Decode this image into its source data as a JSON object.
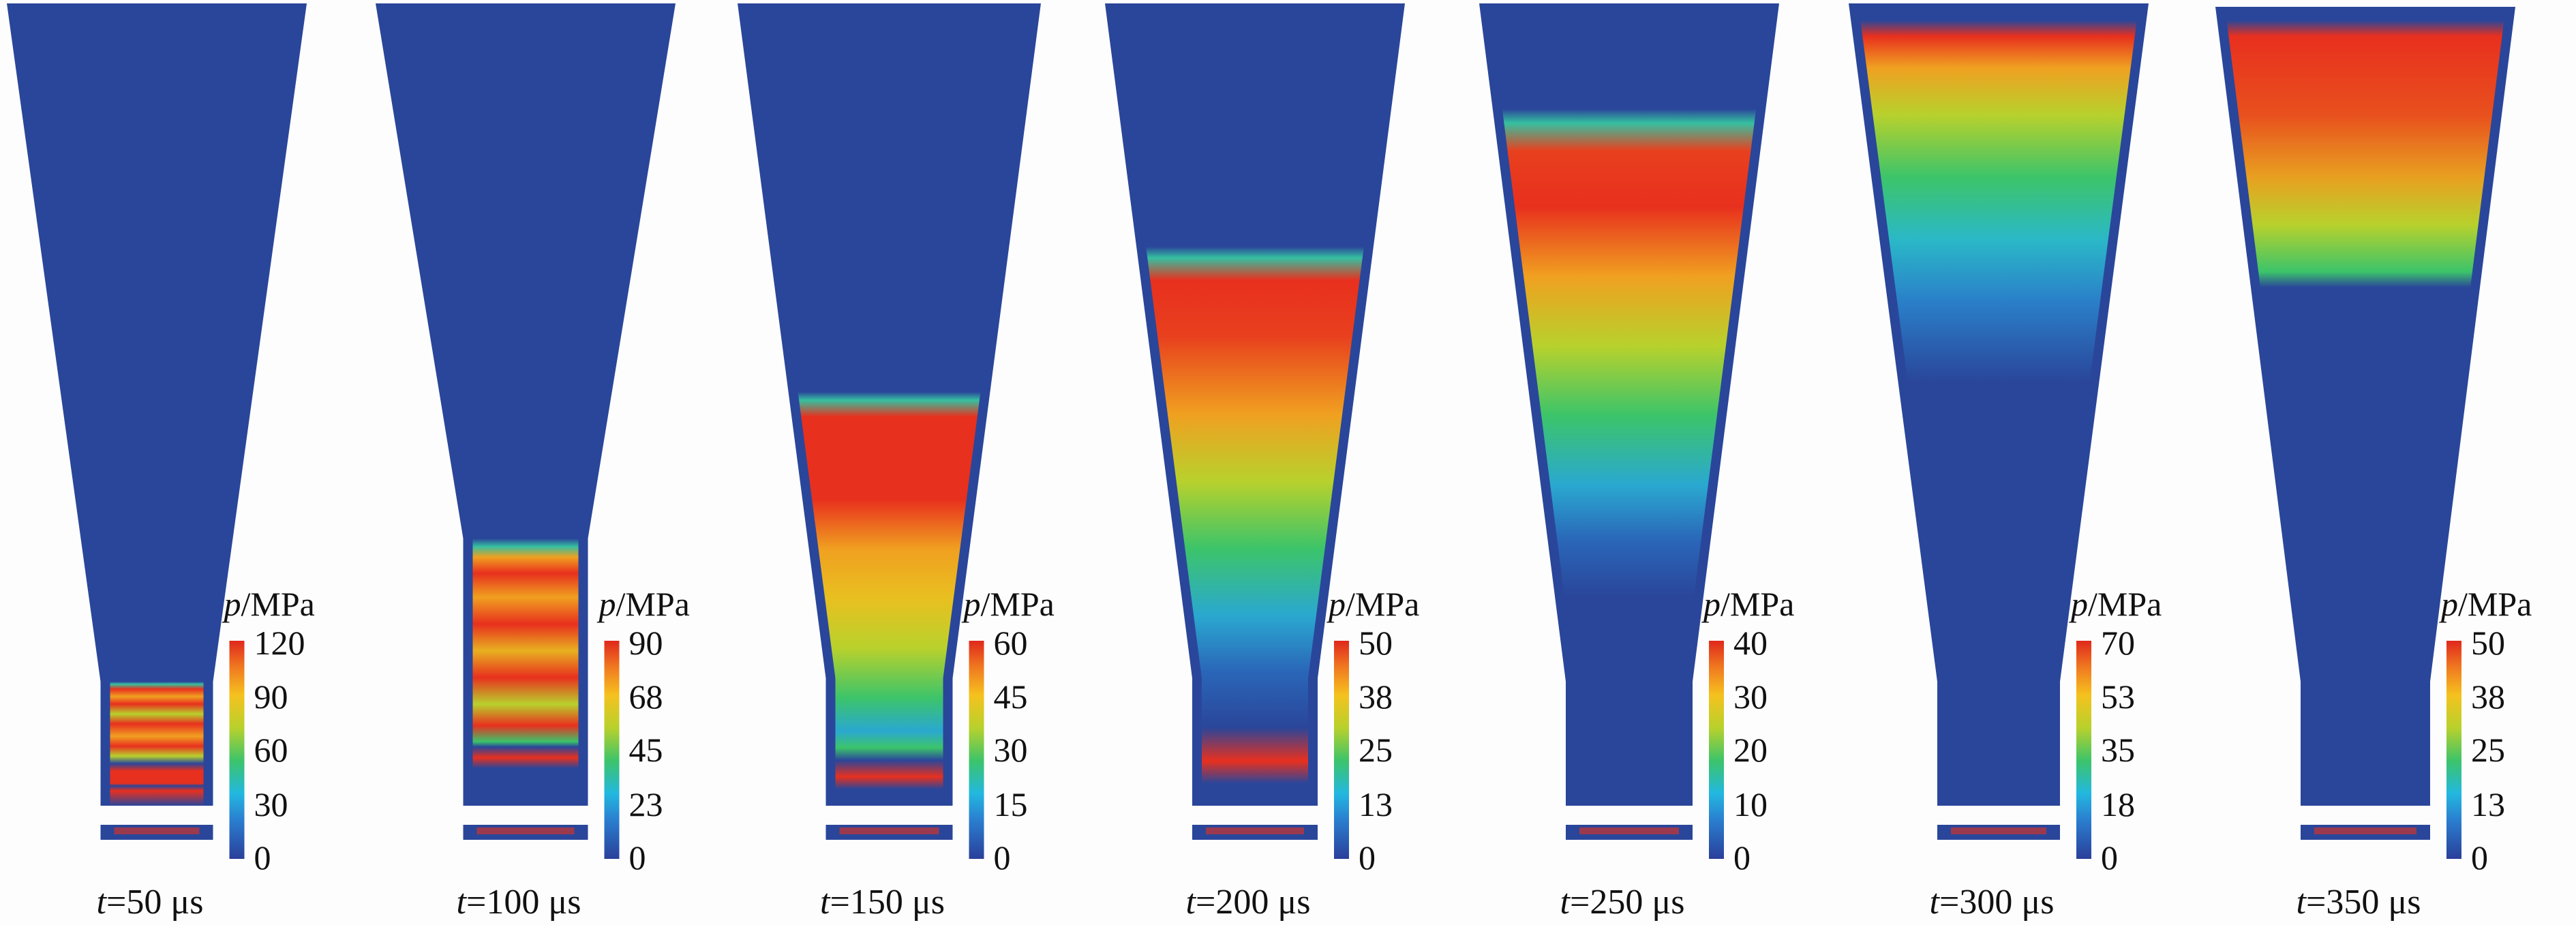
{
  "figure": {
    "colors": {
      "background": "#fdfdfd",
      "blue": "#2a469a",
      "scale": [
        "#2a4aa0",
        "#1f9ad6",
        "#33c36a",
        "#b8d12c",
        "#f0a020",
        "#e8301e"
      ]
    },
    "unit_var": "p",
    "unit_rest": "/MPa",
    "panels": [
      {
        "t_var": "t",
        "t_rest": "=50 μs",
        "ticks": [
          "120",
          "90",
          "60",
          "30",
          "0"
        ],
        "frame": 1
      },
      {
        "t_var": "t",
        "t_rest": "=100 μs",
        "ticks": [
          "90",
          "68",
          "45",
          "23",
          "0"
        ],
        "frame": 2
      },
      {
        "t_var": "t",
        "t_rest": "=150 μs",
        "ticks": [
          "60",
          "45",
          "30",
          "15",
          "0"
        ],
        "frame": 3
      },
      {
        "t_var": "t",
        "t_rest": "=200 μs",
        "ticks": [
          "50",
          "38",
          "25",
          "13",
          "0"
        ],
        "frame": 4
      },
      {
        "t_var": "t",
        "t_rest": "=250 μs",
        "ticks": [
          "40",
          "30",
          "20",
          "10",
          "0"
        ],
        "frame": 5
      },
      {
        "t_var": "t",
        "t_rest": "=300 μs",
        "ticks": [
          "70",
          "53",
          "35",
          "18",
          "0"
        ],
        "frame": 6
      },
      {
        "t_var": "t",
        "t_rest": "=350 μs",
        "ticks": [
          "50",
          "38",
          "25",
          "13",
          "0"
        ],
        "frame": 7
      }
    ]
  }
}
